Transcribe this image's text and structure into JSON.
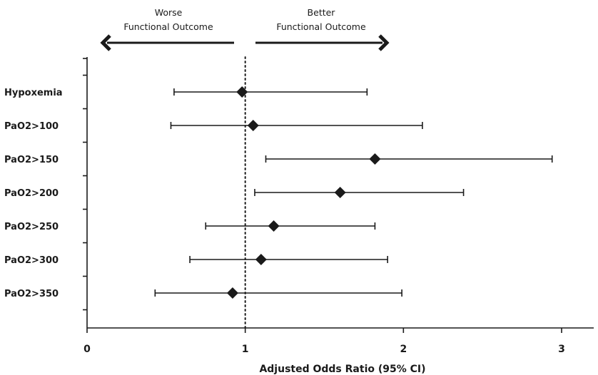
{
  "chart_data": {
    "type": "scatter",
    "subtype": "forest-plot",
    "xlabel": "Adjusted Odds Ratio (95% CI)",
    "xlim": [
      0,
      3.2
    ],
    "xticks": [
      0,
      1,
      2,
      3
    ],
    "reference_line": 1,
    "grid": false,
    "categories": [
      "Hypoxemia",
      "PaO2>100",
      "PaO2>150",
      "PaO2>200",
      "PaO2>250",
      "PaO2>300",
      "PaO2>350"
    ],
    "estimates": [
      0.98,
      1.05,
      1.82,
      1.6,
      1.18,
      1.1,
      0.92
    ],
    "ci_lower": [
      0.55,
      0.53,
      1.13,
      1.06,
      0.75,
      0.65,
      0.43
    ],
    "ci_upper": [
      1.77,
      2.12,
      2.94,
      2.38,
      1.82,
      1.9,
      1.99
    ],
    "annotations": {
      "left": [
        "Worse",
        "Functional Outcome"
      ],
      "right": [
        "Better",
        "Functional Outcome"
      ]
    }
  }
}
